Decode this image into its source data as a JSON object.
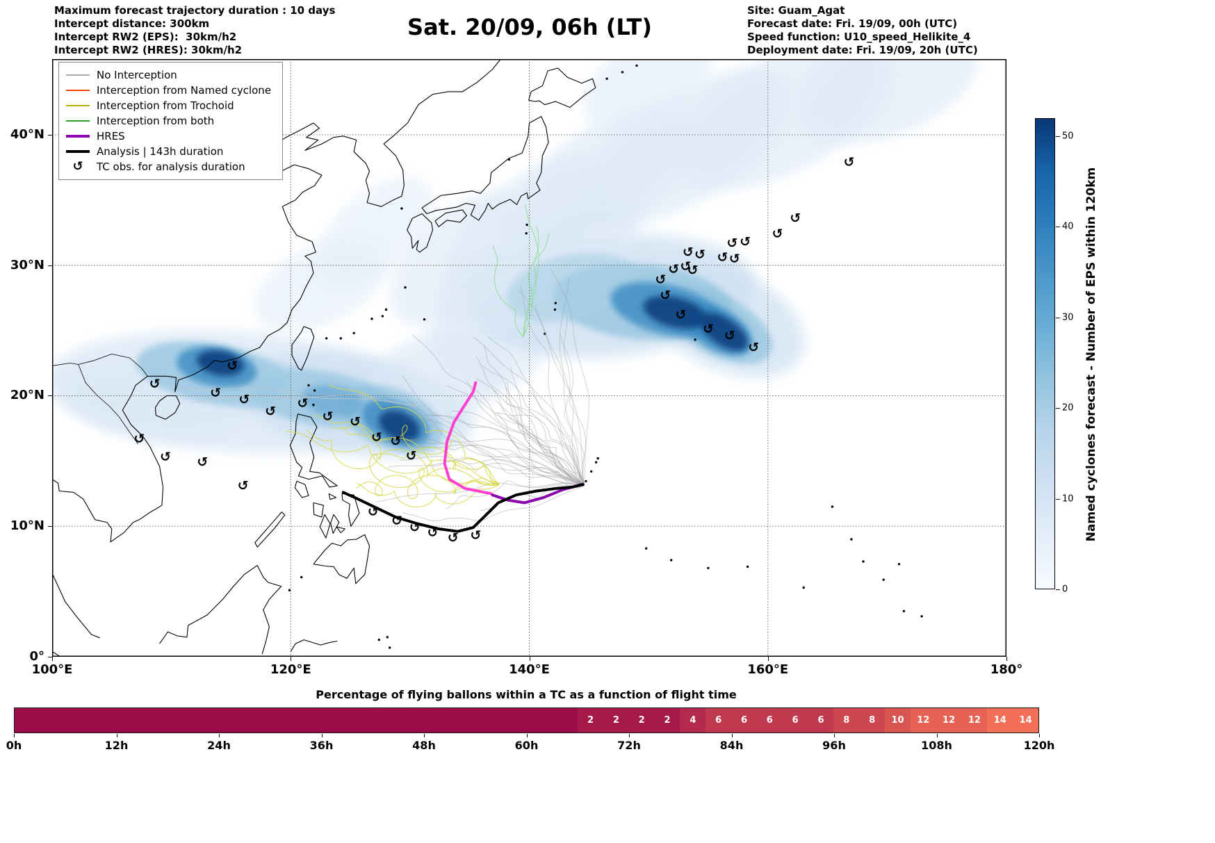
{
  "header": {
    "left_lines": [
      "Maximum forecast trajectory duration : 10 days",
      "Intercept distance: 300km",
      "Intercept RW2 (EPS):  30km/h2",
      "Intercept RW2 (HRES): 30km/h2"
    ],
    "title": "Sat. 20/09, 06h (LT)",
    "right_lines": [
      "Site: Guam_Agat",
      "Forecast date: Fri. 19/09, 00h (UTC)",
      "Speed function: U10_speed_Helikite_4",
      "Deployment date: Fri. 19/09, 20h (UTC)"
    ]
  },
  "chart_data": {
    "type": "map",
    "legend": {
      "entries": [
        {
          "label": "No Interception",
          "color": "#aaaaaa",
          "style": "line"
        },
        {
          "label": "Interception from Named cyclone",
          "color": "#ff4500",
          "style": "line"
        },
        {
          "label": "Interception from Trochoid",
          "color": "#ababab00",
          "style": "line"
        },
        {
          "label": "Interception from both",
          "color": "#2ca02c",
          "style": "line"
        },
        {
          "label": "HRES",
          "color": "#8b08b0",
          "style": "thick"
        },
        {
          "label": "Analysis | 143h duration",
          "color": "#000000",
          "style": "thick"
        },
        {
          "label": "TC obs. for analysis duration",
          "color": "#000000",
          "style": "symbol",
          "symbol": "↺"
        }
      ]
    },
    "map_axes": {
      "lon_min": 100,
      "lon_max": 180,
      "lat_min": 0,
      "lat_max": 45.8,
      "x_ticks": [
        {
          "lon": 100,
          "label": "100°E"
        },
        {
          "lon": 120,
          "label": "120°E"
        },
        {
          "lon": 140,
          "label": "140°E"
        },
        {
          "lon": 160,
          "label": "160°E"
        },
        {
          "lon": 180,
          "label": "180°"
        }
      ],
      "y_ticks": [
        {
          "lat": 0,
          "label": "0°"
        },
        {
          "lat": 10,
          "label": "10°N"
        },
        {
          "lat": 20,
          "label": "20°N"
        },
        {
          "lat": 30,
          "label": "30°N"
        },
        {
          "lat": 40,
          "label": "40°N"
        }
      ]
    },
    "colorbar": {
      "label": "Named cyclones forecast - Number of EPS within 120km",
      "vmin": 0,
      "vmax": 52,
      "ticks": [
        0,
        10,
        20,
        30,
        40,
        50
      ],
      "gradient": [
        "#f7fbff",
        "#e3eef9",
        "#d0e1f2",
        "#b7d4ea",
        "#94c4df",
        "#6aaed6",
        "#4a97c9",
        "#2e7ebc",
        "#1864aa",
        "#083776"
      ]
    },
    "map": {
      "tc_obs": [
        [
          166.8,
          37.9
        ],
        [
          162.3,
          33.6
        ],
        [
          160.8,
          32.4
        ],
        [
          158.1,
          31.8
        ],
        [
          157.0,
          31.7
        ],
        [
          157.2,
          30.5
        ],
        [
          156.2,
          30.6
        ],
        [
          154.3,
          30.8
        ],
        [
          153.3,
          31.0
        ],
        [
          153.1,
          29.9
        ],
        [
          152.1,
          29.7
        ],
        [
          153.7,
          29.6
        ],
        [
          151.0,
          28.9
        ],
        [
          151.4,
          27.7
        ],
        [
          152.7,
          26.2
        ],
        [
          155.0,
          25.1
        ],
        [
          156.8,
          24.6
        ],
        [
          158.8,
          23.7
        ],
        [
          115.1,
          22.3
        ],
        [
          108.6,
          20.9
        ],
        [
          113.7,
          20.2
        ],
        [
          116.1,
          19.7
        ],
        [
          118.3,
          18.8
        ],
        [
          121.0,
          19.4
        ],
        [
          123.1,
          18.4
        ],
        [
          125.4,
          18.0
        ],
        [
          127.2,
          16.8
        ],
        [
          128.8,
          16.5
        ],
        [
          130.1,
          15.4
        ],
        [
          107.3,
          16.7
        ],
        [
          109.5,
          15.3
        ],
        [
          112.6,
          14.9
        ],
        [
          116.0,
          13.1
        ],
        [
          126.9,
          11.1
        ],
        [
          128.9,
          10.4
        ],
        [
          130.4,
          9.9
        ],
        [
          131.9,
          9.5
        ],
        [
          133.6,
          9.1
        ],
        [
          135.5,
          9.3
        ]
      ],
      "analysis_track": [
        [
          124.4,
          12.6
        ],
        [
          125.6,
          12.1
        ],
        [
          127.2,
          11.4
        ],
        [
          128.8,
          10.7
        ],
        [
          130.6,
          10.2
        ],
        [
          132.4,
          9.8
        ],
        [
          134.0,
          9.6
        ],
        [
          135.3,
          9.9
        ],
        [
          136.3,
          10.8
        ],
        [
          137.4,
          11.8
        ],
        [
          138.9,
          12.4
        ],
        [
          140.6,
          12.7
        ],
        [
          142.3,
          12.9
        ],
        [
          143.6,
          13.0
        ],
        [
          144.5,
          13.2
        ]
      ],
      "hres_track": [
        [
          144.4,
          13.2
        ],
        [
          142.8,
          12.8
        ],
        [
          141.2,
          12.2
        ],
        [
          139.6,
          11.8
        ],
        [
          138.2,
          12.0
        ],
        [
          136.9,
          12.4
        ]
      ],
      "hres_forecast_track": [
        [
          136.8,
          12.5
        ],
        [
          134.6,
          12.9
        ],
        [
          133.3,
          13.6
        ],
        [
          132.9,
          14.8
        ],
        [
          133.1,
          16.5
        ],
        [
          133.7,
          18.0
        ],
        [
          134.6,
          19.3
        ],
        [
          135.3,
          20.3
        ],
        [
          135.5,
          21.0
        ]
      ],
      "density_blobs": [
        [
          115.5,
          20.3,
          16,
          4.6,
          -4,
          "#dce8f6",
          0.8,
          "b"
        ],
        [
          108.5,
          19.6,
          8,
          3.0,
          -8,
          "#dce8f6",
          0.7,
          "b"
        ],
        [
          125.5,
          19.3,
          10,
          3.8,
          -10,
          "#cfe1f2",
          0.75,
          "b"
        ],
        [
          132.5,
          21.5,
          6,
          3.4,
          15,
          "#dce8f6",
          0.65,
          "b"
        ],
        [
          136.5,
          24.2,
          5,
          3.8,
          0,
          "#dce8f6",
          0.6,
          "b"
        ],
        [
          147.0,
          27.6,
          12,
          4.6,
          6,
          "#cfe1f2",
          0.8,
          "b"
        ],
        [
          156.5,
          25.8,
          7,
          3.8,
          -25,
          "#cfe1f2",
          0.75,
          "b"
        ],
        [
          140.0,
          33.0,
          8,
          3.6,
          38,
          "#dfeaf7",
          0.7,
          "b"
        ],
        [
          146.0,
          36.5,
          9,
          3.9,
          35,
          "#dfeaf7",
          0.7,
          "b"
        ],
        [
          153.0,
          39.0,
          10,
          4.1,
          32,
          "#dfeaf7",
          0.7,
          "b"
        ],
        [
          161.0,
          41.5,
          10,
          4.4,
          27,
          "#dfeaf7",
          0.7,
          "b"
        ],
        [
          170.0,
          44.0,
          8,
          4.0,
          22,
          "#dfeaf7",
          0.7,
          "b"
        ],
        [
          150.0,
          44.2,
          6,
          3.0,
          30,
          "#e4eef9",
          0.7,
          "b"
        ],
        [
          134.0,
          30.5,
          7,
          3.4,
          45,
          "#dfeaf7",
          0.65,
          "b"
        ],
        [
          127.0,
          32.5,
          6,
          3.0,
          42,
          "#e4eef9",
          0.6,
          "b"
        ],
        [
          122.5,
          28.5,
          6,
          3.0,
          25,
          "#e4eef9",
          0.6,
          "b"
        ],
        [
          143.0,
          31.0,
          7,
          3.4,
          30,
          "#dce8f6",
          0.6,
          "b"
        ],
        [
          137.0,
          28.0,
          5,
          3.0,
          20,
          "#dce8f6",
          0.6,
          "b"
        ],
        [
          113.5,
          21.7,
          6.5,
          2.3,
          -10,
          "#8fc1de",
          0.7,
          "s"
        ],
        [
          122.5,
          19.8,
          6,
          2.1,
          -8,
          "#8fc1de",
          0.65,
          "s"
        ],
        [
          128.5,
          18.2,
          4.5,
          2.3,
          -22,
          "#8fc1de",
          0.7,
          "s"
        ],
        [
          149.5,
          27.2,
          7.5,
          2.9,
          -5,
          "#8fc1de",
          0.7,
          "s"
        ],
        [
          155.8,
          25.4,
          5,
          2.3,
          -28,
          "#8fc1de",
          0.7,
          "s"
        ],
        [
          143.5,
          28.3,
          5.5,
          2.5,
          12,
          "#a8cfe6",
          0.6,
          "s"
        ],
        [
          117.5,
          20.8,
          5,
          1.9,
          -6,
          "#a8cfe6",
          0.6,
          "s"
        ],
        [
          113.8,
          22.2,
          3.4,
          1.5,
          -10,
          "#3b8bc2",
          0.8,
          "s"
        ],
        [
          128.8,
          17.9,
          3.0,
          1.6,
          -24,
          "#3b8bc2",
          0.8,
          "s"
        ],
        [
          151.5,
          26.6,
          4.8,
          1.9,
          -14,
          "#3b8bc2",
          0.8,
          "s"
        ],
        [
          155.8,
          25.1,
          3.2,
          1.6,
          -30,
          "#3b8bc2",
          0.8,
          "s"
        ],
        [
          123.5,
          19.6,
          2.6,
          1.2,
          -10,
          "#5ea3d0",
          0.6,
          "s"
        ],
        [
          114.1,
          22.5,
          2.0,
          0.95,
          -10,
          "#0d3f80",
          0.9,
          "s"
        ],
        [
          129.1,
          17.7,
          1.8,
          1.05,
          -24,
          "#0d3f80",
          0.9,
          "s"
        ],
        [
          152.2,
          26.4,
          2.7,
          1.15,
          -14,
          "#0d3f80",
          0.9,
          "s"
        ],
        [
          156.3,
          24.9,
          2.3,
          1.05,
          -34,
          "#0d3f80",
          0.9,
          "s"
        ]
      ],
      "trajectory_groups": [
        {
          "name": "no-interception",
          "color": "#9a9a9a",
          "opacity": 0.5,
          "count": 34,
          "seed": 7,
          "start": [
            144.6,
            13.1
          ],
          "end_lon": [
            127,
            141
          ],
          "end_lat": [
            11,
            25
          ],
          "amp": 0.35,
          "freq": 16
        },
        {
          "name": "no-interception-north",
          "color": "#9a9a9a",
          "opacity": 0.45,
          "count": 8,
          "seed": 21,
          "start": [
            144.6,
            13.1
          ],
          "end_lon": [
            138,
            150
          ],
          "end_lat": [
            22,
            31
          ],
          "amp": 0.4,
          "freq": 12
        },
        {
          "name": "interception-trochoid",
          "color": "#d8d84a",
          "opacity": 0.85,
          "count": 9,
          "seed": 3,
          "start": [
            137.5,
            13.2
          ],
          "end_lon": [
            119,
            128
          ],
          "end_lat": [
            13,
            21
          ],
          "amp": 0.9,
          "freq": 22
        },
        {
          "name": "interception-both",
          "color": "#8fdc8f",
          "opacity": 0.85,
          "count": 4,
          "seed": 11,
          "start": [
            139.5,
            24.5
          ],
          "end_lon": [
            135,
            146
          ],
          "end_lat": [
            30,
            35.5
          ],
          "amp": 0.5,
          "freq": 10
        },
        {
          "name": "no-interception-west",
          "color": "#c8c8c8",
          "opacity": 0.8,
          "count": 2,
          "seed": 5,
          "start": [
            130.5,
            19.2
          ],
          "end_lon": [
            108,
            112
          ],
          "end_lat": [
            19,
            21
          ],
          "amp": 0.3,
          "freq": 10
        }
      ]
    },
    "bar": {
      "title": "Percentage of flying ballons within a TC as a function of flight time",
      "hours_max": 120,
      "tick_labels": [
        "0h",
        "12h",
        "24h",
        "36h",
        "48h",
        "60h",
        "72h",
        "84h",
        "96h",
        "108h",
        "120h"
      ],
      "segments": [
        {
          "from": 0,
          "to": 66,
          "value": null,
          "color": "#9b0d49"
        },
        {
          "from": 66,
          "to": 69,
          "value": 2,
          "color": "#a51a4b"
        },
        {
          "from": 69,
          "to": 72,
          "value": 2,
          "color": "#a51a4b"
        },
        {
          "from": 72,
          "to": 75,
          "value": 2,
          "color": "#a51a4b"
        },
        {
          "from": 75,
          "to": 78,
          "value": 2,
          "color": "#a51a4b"
        },
        {
          "from": 78,
          "to": 81,
          "value": 4,
          "color": "#b22a4d"
        },
        {
          "from": 81,
          "to": 84,
          "value": 6,
          "color": "#bf394f"
        },
        {
          "from": 84,
          "to": 87,
          "value": 6,
          "color": "#bf394f"
        },
        {
          "from": 87,
          "to": 90,
          "value": 6,
          "color": "#bf394f"
        },
        {
          "from": 90,
          "to": 93,
          "value": 6,
          "color": "#bf394f"
        },
        {
          "from": 93,
          "to": 96,
          "value": 6,
          "color": "#bf394f"
        },
        {
          "from": 96,
          "to": 99,
          "value": 8,
          "color": "#cc474f"
        },
        {
          "from": 99,
          "to": 102,
          "value": 8,
          "color": "#cc474f"
        },
        {
          "from": 102,
          "to": 105,
          "value": 10,
          "color": "#d95552"
        },
        {
          "from": 105,
          "to": 108,
          "value": 12,
          "color": "#e56254"
        },
        {
          "from": 108,
          "to": 111,
          "value": 12,
          "color": "#e56254"
        },
        {
          "from": 111,
          "to": 114,
          "value": 12,
          "color": "#e56254"
        },
        {
          "from": 114,
          "to": 117,
          "value": 14,
          "color": "#f17057"
        },
        {
          "from": 117,
          "to": 120,
          "value": 14,
          "color": "#f17057"
        }
      ]
    }
  }
}
